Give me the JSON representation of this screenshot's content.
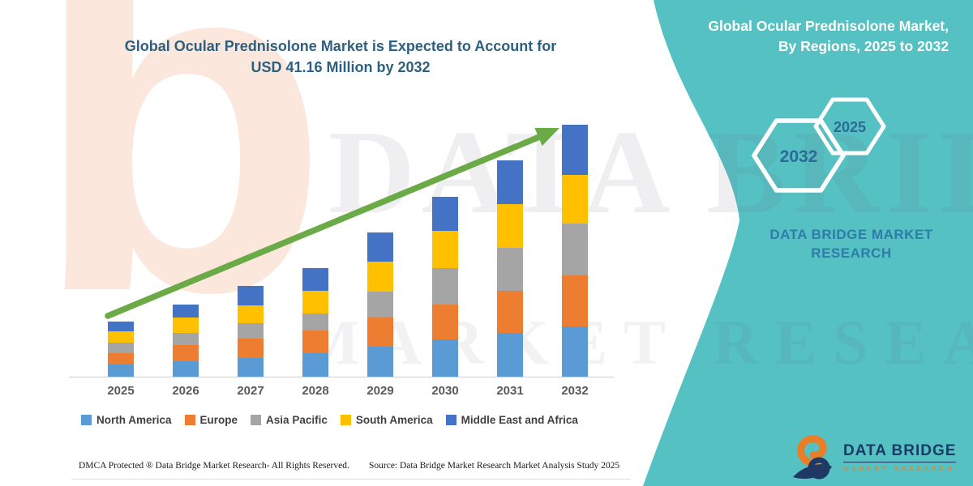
{
  "title": {
    "line1": "Global Ocular Prednisolone Market is Expected to Account for",
    "line2": "USD 41.16 Million by 2032"
  },
  "side_panel": {
    "heading_line1": "Global Ocular Prednisolone Market,",
    "heading_line2": "By Regions, 2025 to 2032",
    "hexagons": [
      {
        "label": "2032"
      },
      {
        "label": "2025"
      }
    ],
    "caption_line1": "DATA BRIDGE MARKET",
    "caption_line2": "RESEARCH"
  },
  "watermarks": {
    "letter": "b",
    "brand": "DATA BRIDGE",
    "sub": "MARKET RESEARCH"
  },
  "chart_data": {
    "type": "bar",
    "stacked": true,
    "title": "Global Ocular Prednisolone Market is Expected to Account for USD 41.16 Million by 2032",
    "unit": "USD Million",
    "categories": [
      "2025",
      "2026",
      "2027",
      "2028",
      "2029",
      "2030",
      "2031",
      "2032"
    ],
    "series": [
      {
        "name": "North America",
        "color": "#5B9BD5",
        "values": [
          2.0,
          2.5,
          3.0,
          3.8,
          4.9,
          6.1,
          7.2,
          8.2
        ]
      },
      {
        "name": "Europe",
        "color": "#ED7D31",
        "values": [
          1.9,
          2.6,
          3.2,
          3.8,
          4.8,
          5.7,
          6.8,
          8.3
        ]
      },
      {
        "name": "Asia Pacific",
        "color": "#A5A5A5",
        "values": [
          1.7,
          2.1,
          2.6,
          2.7,
          4.2,
          6.0,
          7.1,
          8.5
        ]
      },
      {
        "name": "South America",
        "color": "#FFC000",
        "values": [
          1.85,
          2.5,
          2.9,
          3.7,
          4.9,
          6.0,
          7.1,
          8.0
        ]
      },
      {
        "name": "Middle East and Africa",
        "color": "#4472C4",
        "values": [
          1.6,
          2.1,
          3.1,
          3.7,
          4.8,
          5.6,
          7.1,
          8.16
        ]
      }
    ],
    "totals": [
      9.05,
      11.8,
      14.8,
      17.7,
      23.6,
      29.4,
      35.3,
      41.16
    ],
    "ylim": [
      0,
      44
    ],
    "grid": false,
    "axis_labels_hidden": true,
    "legend_position": "bottom",
    "annotation": "green upward trend arrow from 2025 to 2032"
  },
  "footer": {
    "dmca": "DMCA Protected ® Data Bridge Market Research-  All Rights Reserved.",
    "source": "Source: Data Bridge Market Research  Market Analysis Study 2025"
  },
  "logo": {
    "brand": "DATA BRIDGE",
    "sub": "MARKET RESEARCH"
  },
  "colors": {
    "teal_panel": "#56C1C3",
    "arrow_green": "#6BAB47",
    "axis_line": "#CFCFCF",
    "title_text": "#2C5F80",
    "hex_year_text": "#2B6B95",
    "caption_text": "#2E7CA9",
    "year_label_text": "#595959",
    "legend_text": "#3F3F3F",
    "logo_navy": "#1C3A66",
    "logo_orange": "#E87E27"
  }
}
